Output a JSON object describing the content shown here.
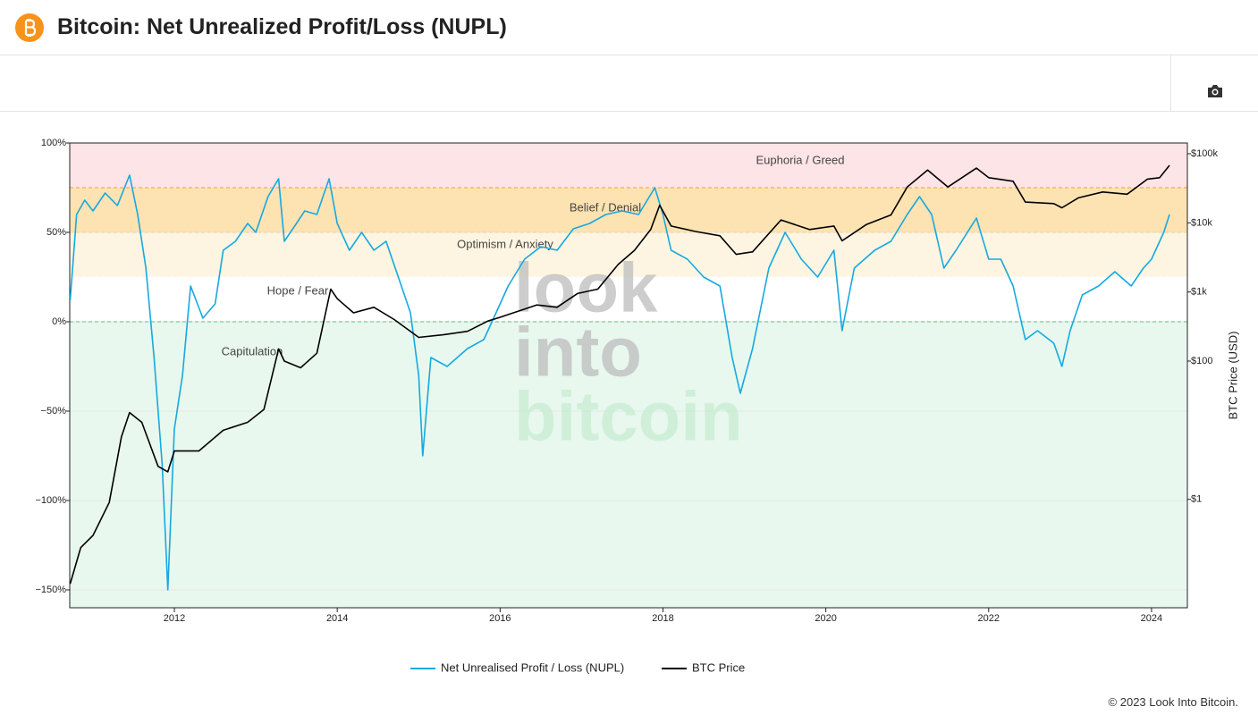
{
  "title": "Bitcoin: Net Unrealized Profit/Loss (NUPL)",
  "footer": "© 2023 Look Into Bitcoin.",
  "chart_data": {
    "type": "line",
    "y2label": "BTC Price (USD)",
    "watermark": [
      "look",
      "into",
      "bitcoin"
    ],
    "xlim": [
      2010.715,
      2024.44
    ],
    "xticks": [
      2012,
      2014,
      2016,
      2018,
      2020,
      2022,
      2024
    ],
    "ylim": [
      -160,
      100
    ],
    "yticks": [
      {
        "value": -150,
        "label": "−150%"
      },
      {
        "value": -100,
        "label": "−100%"
      },
      {
        "value": -50,
        "label": "−50%"
      },
      {
        "value": 0,
        "label": "0%"
      },
      {
        "value": 50,
        "label": "50%"
      },
      {
        "value": 100,
        "label": "100%"
      }
    ],
    "y2log": true,
    "y2lim": [
      0.027,
      143000
    ],
    "y2ticks": [
      {
        "value": 1,
        "label": "$1"
      },
      {
        "value": 100,
        "label": "$100"
      },
      {
        "value": 1000,
        "label": "$1k"
      },
      {
        "value": 10000,
        "label": "$10k"
      },
      {
        "value": 100000,
        "label": "$100k"
      }
    ],
    "grid": true,
    "zones": [
      {
        "name": "Euphoria / Greed",
        "from": 75,
        "to": 100,
        "color": "#fde4e6"
      },
      {
        "name": "Belief / Denial",
        "from": 50,
        "to": 75,
        "color": "#fde2b2"
      },
      {
        "name": "Optimism / Anxiety",
        "from": 25,
        "to": 50,
        "color": "#fdf5e1"
      },
      {
        "name": "Hope / Fear",
        "from": 0,
        "to": 25,
        "color": "#ffffff"
      },
      {
        "name": "Capitulation",
        "from": -160,
        "to": 0,
        "color": "#e8f8ee"
      }
    ],
    "series": [
      {
        "name": "Net Unrealised Profit / Loss (NUPL)",
        "color": "#16a9e0",
        "x": [
          2010.72,
          2010.8,
          2010.9,
          2011.0,
          2011.15,
          2011.3,
          2011.45,
          2011.55,
          2011.65,
          2011.75,
          2011.85,
          2011.92,
          2012.0,
          2012.1,
          2012.2,
          2012.35,
          2012.5,
          2012.6,
          2012.75,
          2012.9,
          2013.0,
          2013.15,
          2013.28,
          2013.35,
          2013.5,
          2013.6,
          2013.75,
          2013.9,
          2014.0,
          2014.15,
          2014.3,
          2014.45,
          2014.6,
          2014.75,
          2014.9,
          2015.0,
          2015.05,
          2015.15,
          2015.35,
          2015.6,
          2015.8,
          2015.95,
          2016.1,
          2016.3,
          2016.5,
          2016.7,
          2016.9,
          2017.1,
          2017.3,
          2017.5,
          2017.7,
          2017.9,
          2018.0,
          2018.1,
          2018.3,
          2018.5,
          2018.7,
          2018.85,
          2018.95,
          2019.1,
          2019.3,
          2019.5,
          2019.7,
          2019.9,
          2020.1,
          2020.2,
          2020.35,
          2020.6,
          2020.8,
          2021.0,
          2021.15,
          2021.3,
          2021.45,
          2021.6,
          2021.85,
          2022.0,
          2022.15,
          2022.3,
          2022.45,
          2022.6,
          2022.8,
          2022.9,
          2023.0,
          2023.15,
          2023.35,
          2023.55,
          2023.75,
          2023.9,
          2024.0,
          2024.15,
          2024.22
        ],
        "values": [
          12,
          60,
          68,
          62,
          72,
          65,
          82,
          60,
          30,
          -20,
          -80,
          -150,
          -60,
          -30,
          20,
          2,
          10,
          40,
          45,
          55,
          50,
          70,
          80,
          45,
          55,
          62,
          60,
          80,
          55,
          40,
          50,
          40,
          45,
          25,
          5,
          -30,
          -75,
          -20,
          -25,
          -15,
          -10,
          5,
          20,
          35,
          42,
          40,
          52,
          55,
          60,
          62,
          60,
          75,
          60,
          40,
          35,
          25,
          20,
          -20,
          -40,
          -15,
          30,
          50,
          35,
          25,
          40,
          -5,
          30,
          40,
          45,
          60,
          70,
          60,
          30,
          40,
          58,
          35,
          35,
          20,
          -10,
          -5,
          -12,
          -25,
          -5,
          15,
          20,
          28,
          20,
          30,
          35,
          50,
          60
        ]
      },
      {
        "name": "BTC Price",
        "color": "#000000",
        "axis": "y2",
        "x": [
          2010.72,
          2010.85,
          2011.0,
          2011.2,
          2011.35,
          2011.45,
          2011.6,
          2011.8,
          2011.92,
          2012.0,
          2012.3,
          2012.6,
          2012.9,
          2013.1,
          2013.28,
          2013.35,
          2013.55,
          2013.75,
          2013.92,
          2014.0,
          2014.2,
          2014.45,
          2014.7,
          2015.0,
          2015.3,
          2015.6,
          2015.85,
          2016.0,
          2016.45,
          2016.7,
          2016.95,
          2017.2,
          2017.45,
          2017.65,
          2017.85,
          2017.96,
          2018.1,
          2018.4,
          2018.7,
          2018.9,
          2019.1,
          2019.45,
          2019.8,
          2020.1,
          2020.2,
          2020.5,
          2020.8,
          2021.0,
          2021.25,
          2021.5,
          2021.85,
          2022.0,
          2022.3,
          2022.45,
          2022.8,
          2022.9,
          2023.1,
          2023.4,
          2023.7,
          2023.95,
          2024.1,
          2024.22
        ],
        "values": [
          0.06,
          0.2,
          0.3,
          0.9,
          8,
          18,
          13,
          3,
          2.5,
          5,
          5,
          10,
          13,
          20,
          150,
          100,
          80,
          130,
          1100,
          800,
          500,
          600,
          400,
          220,
          240,
          270,
          380,
          430,
          650,
          600,
          950,
          1100,
          2500,
          4000,
          8000,
          18000,
          9000,
          7500,
          6500,
          3500,
          3800,
          11000,
          8000,
          9000,
          5500,
          9500,
          13000,
          33000,
          58000,
          33000,
          62000,
          45000,
          40000,
          20000,
          19000,
          16500,
          23000,
          28000,
          26000,
          43000,
          45000,
          68000
        ]
      }
    ]
  }
}
